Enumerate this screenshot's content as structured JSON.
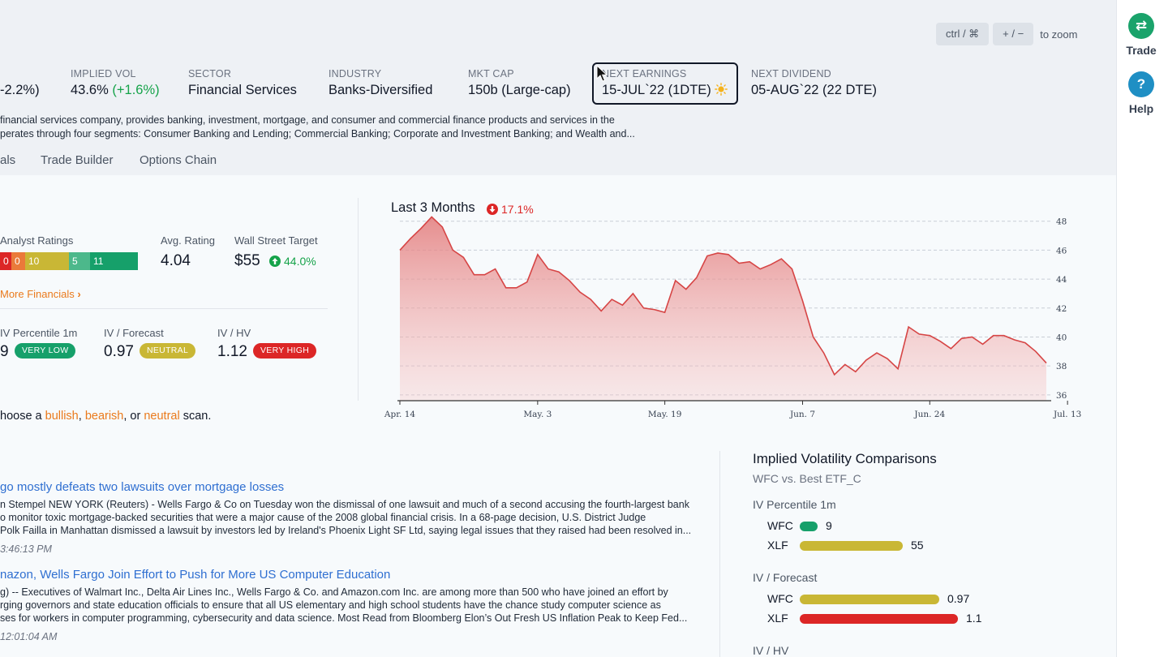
{
  "zoom": {
    "key1": "ctrl / ⌘",
    "key2": "+ / −",
    "label": "to zoom"
  },
  "rightbar": {
    "trade_label": "Trade",
    "help_label": "Help",
    "colors": {
      "trade": "#1aa36b",
      "help": "#1f8fc4"
    }
  },
  "stats": {
    "change_value": "-2.2%)",
    "implied_vol": {
      "label": "IMPLIED VOL",
      "value": "43.6%",
      "change": "(+1.6%)"
    },
    "sector": {
      "label": "SECTOR",
      "value": "Financial Services"
    },
    "industry": {
      "label": "INDUSTRY",
      "value": "Banks-Diversified"
    },
    "mkt_cap": {
      "label": "MKT CAP",
      "value": "150b (Large-cap)"
    },
    "next_earnings": {
      "label": "NEXT EARNINGS",
      "value": "15-JUL`22 (1DTE)",
      "icon": "sun-icon"
    },
    "next_dividend": {
      "label": "NEXT DIVIDEND",
      "value": "05-AUG`22 (22 DTE)"
    }
  },
  "description": {
    "line1": "financial services company, provides banking, investment, mortgage, and consumer and commercial finance products and services in the",
    "line2": "perates through four segments: Consumer Banking and Lending; Commercial Banking; Corporate and Investment Banking; and Wealth and..."
  },
  "tabs": [
    "als",
    "Trade Builder",
    "Options Chain"
  ],
  "analyst": {
    "label": "Analyst Ratings",
    "segments": [
      {
        "value": "0",
        "color": "#dc2626"
      },
      {
        "value": "0",
        "color": "#ea7a3a"
      },
      {
        "value": "10",
        "color": "#c9b735"
      },
      {
        "value": "5",
        "color": "#4cb88b"
      },
      {
        "value": "11",
        "color": "#16a06a"
      }
    ],
    "avg_label": "Avg. Rating",
    "avg_value": "4.04",
    "target_label": "Wall Street Target",
    "target_value": "$55",
    "target_change": "44.0%",
    "more_link": "More Financials"
  },
  "iv_metrics": [
    {
      "label": "IV Percentile 1m",
      "value": "9",
      "badge": "VERY LOW",
      "color": "#16a06a"
    },
    {
      "label": "IV / Forecast",
      "value": "0.97",
      "badge": "NEUTRAL",
      "color": "#c9b735"
    },
    {
      "label": "IV / HV",
      "value": "1.12",
      "badge": "VERY HIGH",
      "color": "#dc2626"
    }
  ],
  "scan": {
    "prefix": "hoose a",
    "bullish": "bullish",
    "sep1": ",",
    "bearish": "bearish",
    "sep2": ", or",
    "neutral": "neutral",
    "suffix": "scan."
  },
  "news": [
    {
      "title": "go mostly defeats two lawsuits over mortgage losses",
      "lines": [
        "n Stempel NEW YORK (Reuters) - Wells Fargo & Co on Tuesday won the dismissal of one lawsuit and much of a second accusing the fourth-largest bank",
        "o monitor toxic mortgage-backed securities that were a major cause of the 2008 global financial crisis. In a 68-page decision, U.S. District Judge",
        "Polk Failla in Manhattan dismissed a lawsuit by investors led by Ireland's Phoenix Light SF Ltd, saying legal issues that they raised had been resolved in..."
      ],
      "time": "3:46:13 PM"
    },
    {
      "title": "nazon, Wells Fargo Join Effort to Push for More US Computer Education",
      "lines": [
        "g) -- Executives of Walmart Inc., Delta Air Lines Inc., Wells Fargo & Co. and Amazon.com Inc. are among more than 500 who have joined an effort by",
        "rging governors and state education officials to ensure that all US elementary and high school students have the chance study computer science as",
        "ses for workers in computer programming, cybersecurity and data science. Most Read from Bloomberg Elon’s Out Fresh US Inflation Peak to Keep Fed..."
      ],
      "time": "12:01:04 AM"
    }
  ],
  "ivc": {
    "title": "Implied Volatility Comparisons",
    "subtitle": "WFC vs. Best ETF_C",
    "sections": [
      {
        "label": "IV Percentile 1m",
        "max": 100,
        "rows": [
          {
            "name": "WFC",
            "value": 9,
            "text": "9",
            "color": "#16a06a"
          },
          {
            "name": "XLF",
            "value": 55,
            "text": "55",
            "color": "#c9b735"
          }
        ]
      },
      {
        "label": "IV / Forecast",
        "max": 1.3,
        "rows": [
          {
            "name": "WFC",
            "value": 0.97,
            "text": "0.97",
            "color": "#c9b735"
          },
          {
            "name": "XLF",
            "value": 1.1,
            "text": "1.1",
            "color": "#dc2626"
          }
        ]
      },
      {
        "label": "IV / HV",
        "max": 1.3,
        "rows": []
      }
    ]
  },
  "chart_data": {
    "type": "area",
    "title": "Last 3 Months",
    "change": "17.1%",
    "change_direction": "down",
    "color": "#d64545",
    "xlabel": "",
    "ylabel": "",
    "ylim": [
      35.6,
      48.6
    ],
    "yticks": [
      36,
      38,
      40,
      42,
      44,
      46,
      48
    ],
    "xticks": [
      {
        "label": "Apr. 14",
        "index": 0
      },
      {
        "label": "May. 3",
        "index": 13
      },
      {
        "label": "May. 19",
        "index": 25
      },
      {
        "label": "Jun. 7",
        "index": 38
      },
      {
        "label": "Jun. 24",
        "index": 50
      },
      {
        "label": "Jul. 13",
        "index": 63
      }
    ],
    "grid": true,
    "values": [
      46.0,
      46.8,
      47.5,
      48.3,
      47.6,
      46.0,
      45.5,
      44.3,
      44.3,
      44.7,
      43.4,
      43.4,
      43.8,
      45.7,
      44.7,
      44.5,
      43.9,
      43.1,
      42.6,
      41.8,
      42.6,
      42.2,
      43.0,
      42.0,
      41.9,
      41.7,
      43.9,
      43.3,
      44.1,
      45.6,
      45.8,
      45.7,
      45.1,
      45.2,
      44.7,
      45.0,
      45.4,
      44.7,
      42.5,
      40.0,
      38.9,
      37.4,
      38.1,
      37.6,
      38.4,
      38.9,
      38.5,
      37.8,
      40.7,
      40.2,
      40.1,
      39.7,
      39.2,
      39.9,
      40.0,
      39.5,
      40.1,
      40.1,
      39.8,
      39.6,
      39.0,
      38.2
    ]
  }
}
